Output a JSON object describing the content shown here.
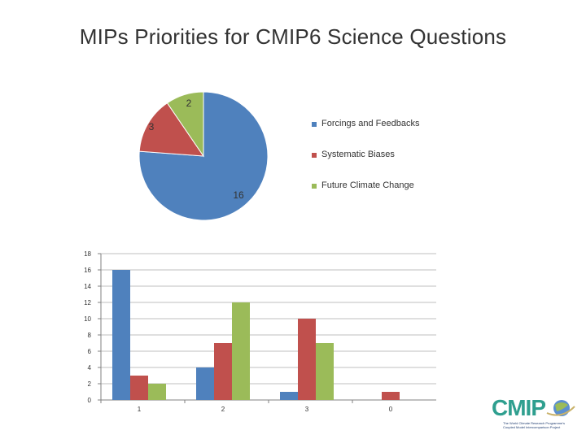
{
  "title": "MIPs Priorities for CMIP6 Science Questions",
  "chart_data": [
    {
      "type": "pie",
      "labels": [
        "Forcings and Feedbacks",
        "Systematic Biases",
        "Future Climate Change"
      ],
      "values": [
        16,
        3,
        2
      ],
      "colors": [
        "#4f81bd",
        "#c0504d",
        "#9bbb59"
      ],
      "legend_position": "right"
    },
    {
      "type": "bar",
      "categories": [
        "1",
        "2",
        "3",
        "0"
      ],
      "series": [
        {
          "values": [
            16,
            4,
            1,
            0
          ],
          "color": "#4f81bd"
        },
        {
          "values": [
            3,
            7,
            10,
            1
          ],
          "color": "#c0504d"
        },
        {
          "values": [
            2,
            12,
            7,
            0
          ],
          "color": "#9bbb59"
        }
      ],
      "ylim": [
        0,
        18
      ],
      "yticks": [
        "0",
        "2",
        "4",
        "6",
        "8",
        "10",
        "12",
        "14",
        "16",
        "18"
      ],
      "grid": true
    }
  ],
  "logo": {
    "text": "CMIP",
    "subtitle": "The World Climate Research Programme's Coupled Model Intercomparison Project"
  }
}
